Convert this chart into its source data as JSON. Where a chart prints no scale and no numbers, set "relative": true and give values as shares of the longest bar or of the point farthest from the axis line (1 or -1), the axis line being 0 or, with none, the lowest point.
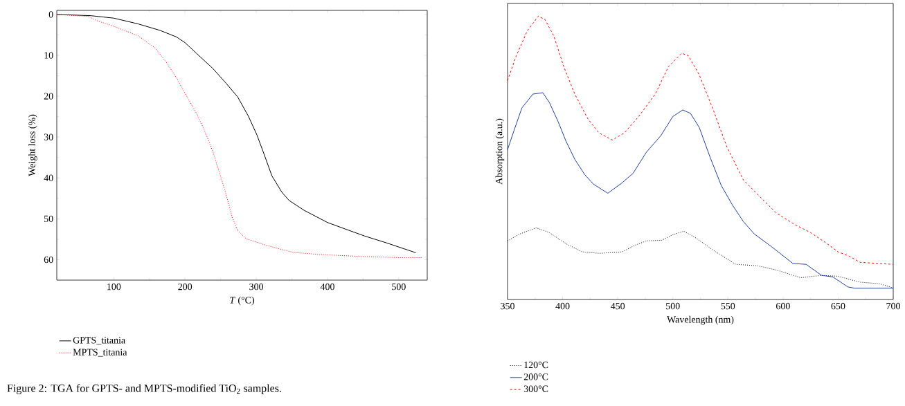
{
  "chart_data": [
    {
      "type": "line",
      "xlabel": "*T* (°C)",
      "ylabel": "Weight loss (%)",
      "xlim": [
        20,
        540
      ],
      "ylim": [
        65,
        -1
      ],
      "xticks": [
        100,
        200,
        300,
        400,
        500
      ],
      "yticks": [
        0,
        10,
        20,
        30,
        40,
        50,
        60
      ],
      "grid": false,
      "legend": "bottom",
      "annotations": [
        "Figure 2: TGA for GPTS- and MPTS-modified TiO$_{2}$ samples."
      ],
      "series": [
        {
          "name": "GPTS_titania",
          "color": "#000000",
          "line_style": "solid",
          "x": [
            20,
            68,
            100,
            134,
            165,
            188,
            200,
            216,
            239,
            258,
            274,
            289,
            301,
            311,
            322,
            336,
            346,
            367,
            400,
            425,
            452,
            483,
            524
          ],
          "values": [
            0,
            0.3,
            0.9,
            2.3,
            3.9,
            5.5,
            6.9,
            9.5,
            13.2,
            16.9,
            20.2,
            24.9,
            29.5,
            34.2,
            39.5,
            43.5,
            45.5,
            47.9,
            50.9,
            52.5,
            54.2,
            55.9,
            58.3
          ]
        },
        {
          "name": "MPTS_titania",
          "color": "#ff0000",
          "line_style": "dotted",
          "x": [
            20,
            65,
            76,
            100,
            134,
            158,
            173,
            188,
            204,
            216,
            227,
            239,
            251,
            258,
            266,
            274,
            286,
            309,
            329,
            352,
            386,
            445,
            503,
            532
          ],
          "values": [
            0,
            0.5,
            1.5,
            2.9,
            5.2,
            8.2,
            11.5,
            15.5,
            20.5,
            24.2,
            28.2,
            33.5,
            40.2,
            44.2,
            49.5,
            52.9,
            54.9,
            56.2,
            57.2,
            58.2,
            58.7,
            59.2,
            59.5,
            59.5
          ]
        }
      ]
    },
    {
      "type": "line",
      "relative": true,
      "xlabel": "Wavelength (nm)",
      "ylabel": "Absorption (a.u.)",
      "xlim": [
        350,
        700
      ],
      "xticks": [
        350,
        400,
        450,
        500,
        550,
        600,
        650,
        700
      ],
      "grid": false,
      "legend": "bottom",
      "series": [
        {
          "name": "120°C",
          "color": "#000000",
          "line_style": "dotted",
          "x": [
            350,
            361,
            376,
            388,
            403,
            418,
            433,
            454,
            466,
            476,
            490,
            499,
            510,
            521,
            537,
            557,
            577,
            594,
            616,
            635,
            650,
            670,
            687,
            700
          ],
          "values": [
            0.207,
            0.231,
            0.253,
            0.236,
            0.197,
            0.168,
            0.163,
            0.168,
            0.192,
            0.207,
            0.209,
            0.227,
            0.241,
            0.217,
            0.173,
            0.124,
            0.119,
            0.104,
            0.077,
            0.085,
            0.082,
            0.061,
            0.056,
            0.041
          ]
        },
        {
          "name": "200°C",
          "color": "#2040a0",
          "line_style": "solid",
          "x": [
            350,
            356,
            363,
            373,
            382,
            388,
            396,
            403,
            411,
            420,
            428,
            441,
            454,
            464,
            476,
            489,
            500,
            509,
            516,
            524,
            534,
            544,
            554,
            564,
            574,
            589,
            609,
            621,
            635,
            645,
            659,
            665,
            700
          ],
          "values": [
            0.529,
            0.598,
            0.676,
            0.725,
            0.73,
            0.695,
            0.627,
            0.559,
            0.495,
            0.441,
            0.407,
            0.375,
            0.412,
            0.446,
            0.52,
            0.578,
            0.646,
            0.669,
            0.657,
            0.607,
            0.5,
            0.402,
            0.334,
            0.275,
            0.231,
            0.188,
            0.127,
            0.124,
            0.085,
            0.08,
            0.044,
            0.04,
            0.04
          ]
        },
        {
          "name": "300°C",
          "color": "#ff0000",
          "line_style": "dashed",
          "x": [
            350,
            358,
            368,
            378,
            384,
            392,
            401,
            411,
            423,
            433,
            445,
            456,
            469,
            484,
            496,
            508,
            514,
            524,
            537,
            549,
            564,
            579,
            594,
            610,
            625,
            640,
            650,
            660,
            670,
            700
          ],
          "values": [
            0.773,
            0.861,
            0.949,
            1.0,
            0.988,
            0.93,
            0.822,
            0.725,
            0.637,
            0.588,
            0.563,
            0.588,
            0.646,
            0.725,
            0.822,
            0.869,
            0.861,
            0.793,
            0.666,
            0.539,
            0.422,
            0.363,
            0.305,
            0.266,
            0.236,
            0.197,
            0.168,
            0.153,
            0.131,
            0.124
          ]
        }
      ]
    }
  ]
}
